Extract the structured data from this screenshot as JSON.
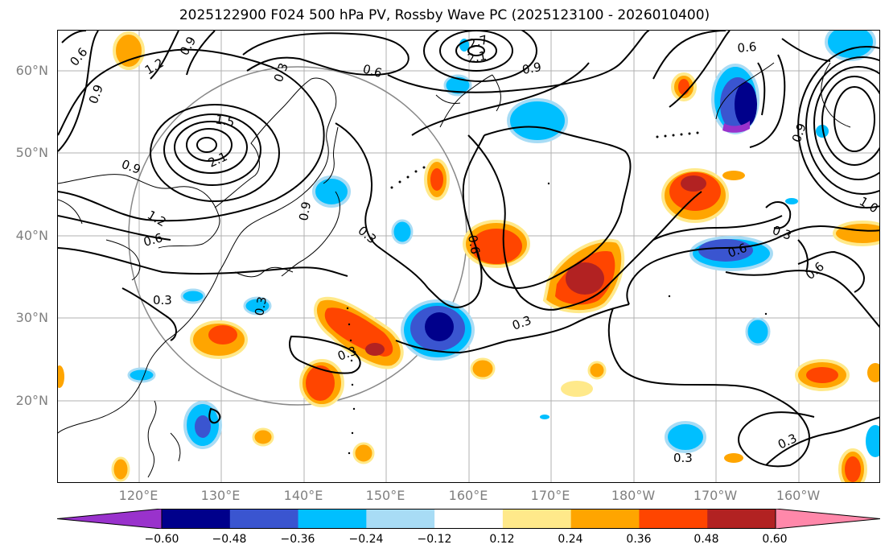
{
  "title": "2025122900 F024 500 hPa PV, Rossby Wave PC (2025123100 - 2026010400)",
  "map": {
    "lat_labels": [
      "60°N",
      "50°N",
      "40°N",
      "30°N",
      "20°N"
    ],
    "lon_labels": [
      "120°E",
      "130°E",
      "140°E",
      "150°E",
      "160°E",
      "170°E",
      "180°W",
      "170°W",
      "160°W"
    ],
    "contour_labels": [
      "0.6",
      "0.9",
      "1.2",
      "0.9",
      "0.3",
      "0.6",
      "0.9",
      "1.5",
      "2.1",
      "2.7",
      "2.1",
      "0.9",
      "0.6",
      "0.3",
      "0.9",
      "1.2",
      "0.6",
      "0.3",
      "0.3",
      "0.3",
      "0.6",
      "0.3",
      "0.6",
      "0.3",
      "0.3",
      "0.6",
      "0.3",
      "0.9",
      "1.0"
    ]
  },
  "colorbar": {
    "ticks": [
      "−0.60",
      "−0.48",
      "−0.36",
      "−0.24",
      "−0.12",
      "0.12",
      "0.24",
      "0.36",
      "0.48",
      "0.60"
    ],
    "colors": [
      "#9932cc",
      "#00008b",
      "#3a55d0",
      "#00bfff",
      "#a8dcf5",
      "#ffffff",
      "#ffe98a",
      "#ffa500",
      "#ff4500",
      "#b22222",
      "#ff88aa"
    ]
  }
}
